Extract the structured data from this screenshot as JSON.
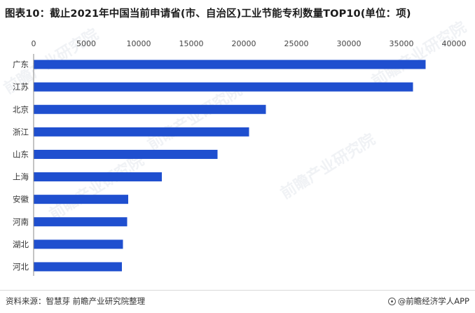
{
  "title": "图表10：截止2021年中国当前申请省(市、自治区)工业节能专利数量TOP10(单位：项)",
  "footer": {
    "source": "资料来源：智慧芽 前瞻产业研究院整理",
    "brand": "@前瞻经济学人APP"
  },
  "watermark": "前瞻产业研究院",
  "colors": {
    "bar": "#1f4fcf",
    "accent": "#1f4fcf"
  },
  "chart_data": {
    "type": "bar",
    "orientation": "horizontal",
    "categories": [
      "广东",
      "江苏",
      "北京",
      "浙江",
      "山东",
      "上海",
      "安徽",
      "河南",
      "湖北",
      "河北"
    ],
    "values": [
      37300,
      36100,
      22100,
      20500,
      17500,
      12200,
      9000,
      8900,
      8500,
      8400
    ],
    "xlim": [
      0,
      40000
    ],
    "xticks": [
      0,
      5000,
      10000,
      15000,
      20000,
      25000,
      30000,
      35000,
      40000
    ],
    "x_axis_position": "top",
    "grid": false,
    "legend": "none"
  }
}
